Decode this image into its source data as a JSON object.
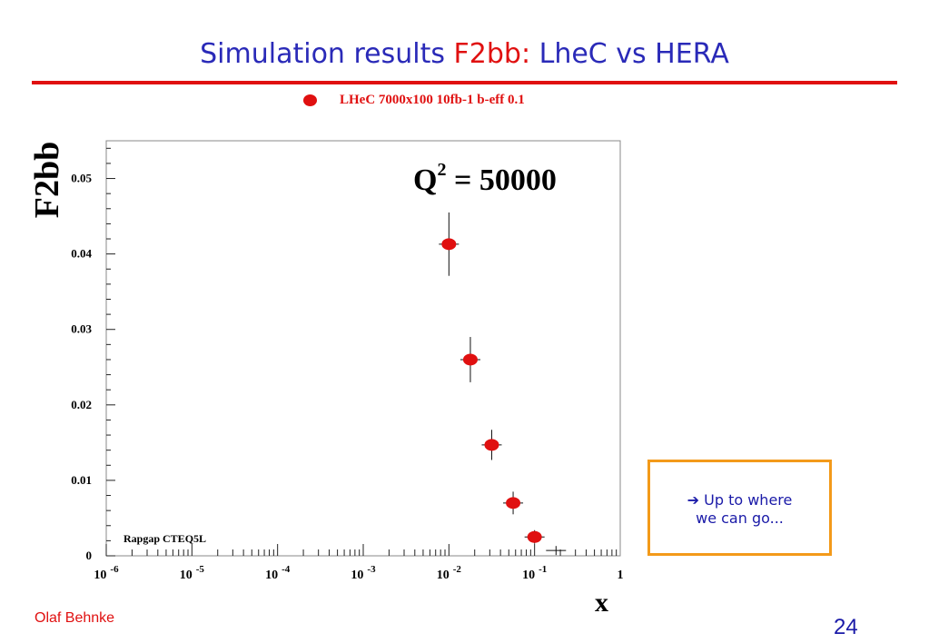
{
  "slide": {
    "title_prefix": "Simulation results ",
    "title_highlight": "F2bb:",
    "title_suffix": " LheC vs HERA",
    "author": "Olaf Behnke",
    "page_number": "24"
  },
  "callout": {
    "line1": "➔ Up to where",
    "line2": "we can go..."
  },
  "chart_data": {
    "type": "scatter",
    "ylabel": "F2bb",
    "xlabel": "x",
    "x_scale": "log",
    "xlim": [
      1e-06,
      1
    ],
    "ylim": [
      0,
      0.055
    ],
    "x_tick_labels": [
      {
        "base": "10",
        "exp": "-6"
      },
      {
        "base": "10",
        "exp": "-5"
      },
      {
        "base": "10",
        "exp": "-4"
      },
      {
        "base": "10",
        "exp": "-3"
      },
      {
        "base": "10",
        "exp": "-2"
      },
      {
        "base": "10",
        "exp": "-1"
      },
      {
        "base": "1",
        "exp": ""
      }
    ],
    "y_ticks": [
      0,
      0.01,
      0.02,
      0.03,
      0.04,
      0.05
    ],
    "y_tick_labels": [
      "0",
      "0.01",
      "0.02",
      "0.03",
      "0.04",
      "0.05"
    ],
    "legend_position": "top",
    "annotation_main": "Q",
    "annotation_sup": "2",
    "annotation_rest": " = 50000",
    "annotation_generator": "Rapgap CTEQ5L",
    "series": [
      {
        "name": "LHeC 7000x100  10fb-1 b-eff 0.1",
        "color": "#e01010",
        "marker": "filled-circle",
        "points": [
          {
            "x": 0.01,
            "y": 0.0413,
            "yerr": 0.0042
          },
          {
            "x": 0.0178,
            "y": 0.026,
            "yerr": 0.003
          },
          {
            "x": 0.0316,
            "y": 0.0147,
            "yerr": 0.002
          },
          {
            "x": 0.0562,
            "y": 0.007,
            "yerr": 0.0015
          },
          {
            "x": 0.1,
            "y": 0.0025,
            "yerr": 0.0009
          }
        ]
      },
      {
        "name": "",
        "color": "#000000",
        "marker": "cross",
        "points": [
          {
            "x": 0.178,
            "y": 0.0007,
            "yerr": 0.0006
          }
        ]
      }
    ]
  }
}
